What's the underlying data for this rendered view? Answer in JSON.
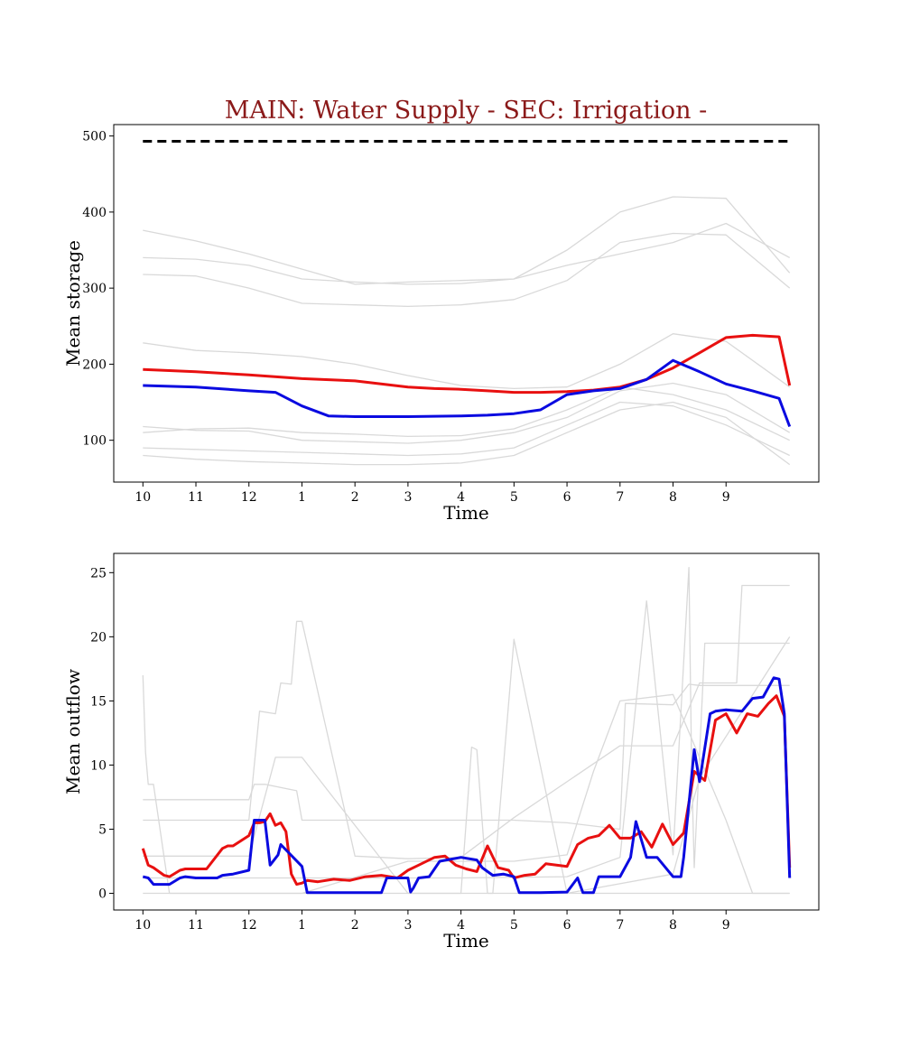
{
  "chart_data": [
    {
      "type": "line",
      "title": "MAIN: Water Supply - SEC: Irrigation -",
      "xlabel": "Time",
      "ylabel": "Mean storage",
      "x_tick_labels": [
        "10",
        "11",
        "12",
        "1",
        "2",
        "3",
        "4",
        "5",
        "6",
        "7",
        "8",
        "9"
      ],
      "x_tick_positions": [
        0,
        1,
        2,
        3,
        4,
        5,
        6,
        7,
        8,
        9,
        10,
        11
      ],
      "xlim": [
        -0.55,
        12.75
      ],
      "ylim": [
        45,
        515
      ],
      "y_ticks": [
        100,
        200,
        300,
        400,
        500
      ],
      "grid": false,
      "colors": {
        "highlight_red": "#e81010",
        "highlight_blue": "#0a0ae0",
        "background_lines": "#d9d9d9",
        "reference_line": "#000000"
      },
      "reference_line": {
        "y": 493,
        "x_range": [
          0,
          12.2
        ],
        "style": "dashed"
      },
      "series": [
        {
          "role": "red",
          "x": [
            0,
            1,
            2,
            3,
            4,
            5,
            5.5,
            6,
            6.5,
            7,
            7.5,
            8,
            8.5,
            9,
            9.5,
            10,
            10.5,
            11,
            11.5,
            12,
            12.2
          ],
          "values": [
            193,
            190,
            186,
            181,
            178,
            170,
            168,
            167,
            165,
            163,
            163,
            164,
            166,
            170,
            180,
            195,
            215,
            235,
            238,
            236,
            172
          ]
        },
        {
          "role": "blue",
          "x": [
            0,
            1,
            2,
            2.5,
            3,
            3.5,
            4,
            5,
            6,
            6.5,
            7,
            7.3,
            7.5,
            8,
            8.5,
            9,
            9.5,
            10,
            10.5,
            11,
            11.5,
            12,
            12.2
          ],
          "values": [
            172,
            170,
            165,
            163,
            145,
            132,
            131,
            131,
            132,
            133,
            135,
            138,
            140,
            160,
            165,
            168,
            180,
            205,
            190,
            174,
            165,
            155,
            118
          ]
        },
        {
          "role": "background",
          "x": [
            0,
            1,
            2,
            3,
            4,
            5,
            6,
            7,
            8,
            9,
            10,
            11,
            12.2
          ],
          "values": [
            376,
            362,
            345,
            325,
            305,
            308,
            310,
            312,
            330,
            345,
            360,
            385,
            340
          ]
        },
        {
          "role": "background",
          "x": [
            0,
            1,
            2,
            3,
            4,
            5,
            6,
            7,
            8,
            9,
            10,
            11,
            12.2
          ],
          "values": [
            340,
            338,
            330,
            312,
            308,
            305,
            306,
            312,
            350,
            400,
            420,
            418,
            320
          ]
        },
        {
          "role": "background",
          "x": [
            0,
            1,
            2,
            3,
            4,
            5,
            6,
            7,
            8,
            9,
            10,
            11,
            12.2
          ],
          "values": [
            318,
            316,
            300,
            280,
            278,
            276,
            278,
            285,
            310,
            360,
            372,
            370,
            300
          ]
        },
        {
          "role": "background",
          "x": [
            0,
            1,
            2,
            3,
            4,
            5,
            6,
            7,
            8,
            9,
            10,
            11,
            12.2
          ],
          "values": [
            228,
            218,
            215,
            210,
            200,
            185,
            172,
            168,
            170,
            200,
            240,
            230,
            170
          ]
        },
        {
          "role": "background",
          "x": [
            0,
            1,
            2,
            3,
            4,
            5,
            6,
            7,
            8,
            9,
            10,
            11,
            12.2
          ],
          "values": [
            118,
            113,
            112,
            100,
            98,
            96,
            100,
            110,
            130,
            165,
            175,
            160,
            110
          ]
        },
        {
          "role": "background",
          "x": [
            0,
            1,
            2,
            3,
            4,
            5,
            6,
            7,
            8,
            9,
            10,
            11,
            12.2
          ],
          "values": [
            110,
            115,
            116,
            110,
            108,
            105,
            106,
            115,
            140,
            170,
            160,
            140,
            100
          ]
        },
        {
          "role": "background",
          "x": [
            0,
            1,
            2,
            3,
            4,
            5,
            6,
            7,
            8,
            9,
            10,
            11,
            12.2
          ],
          "values": [
            90,
            88,
            86,
            84,
            82,
            80,
            82,
            90,
            120,
            150,
            145,
            120,
            80
          ]
        },
        {
          "role": "background",
          "x": [
            0,
            1,
            2,
            3,
            4,
            5,
            6,
            7,
            8,
            9,
            10,
            11,
            12.2
          ],
          "values": [
            80,
            75,
            72,
            70,
            68,
            68,
            70,
            80,
            110,
            140,
            150,
            130,
            68
          ]
        }
      ]
    },
    {
      "type": "line",
      "title": "",
      "xlabel": "Time",
      "ylabel": "Mean outflow",
      "x_tick_labels": [
        "10",
        "11",
        "12",
        "1",
        "2",
        "3",
        "4",
        "5",
        "6",
        "7",
        "8",
        "9"
      ],
      "x_tick_positions": [
        0,
        1,
        2,
        3,
        4,
        5,
        6,
        7,
        8,
        9,
        10,
        11
      ],
      "xlim": [
        -0.55,
        12.75
      ],
      "ylim": [
        -1.3,
        26.5
      ],
      "y_ticks": [
        0,
        5,
        10,
        15,
        20,
        25
      ],
      "grid": false,
      "colors": {
        "highlight_red": "#e81010",
        "highlight_blue": "#0a0ae0",
        "background_lines": "#d9d9d9"
      },
      "series": [
        {
          "role": "red",
          "x": [
            0,
            0.1,
            0.2,
            0.4,
            0.5,
            0.7,
            0.8,
            1.0,
            1.2,
            1.5,
            1.6,
            1.7,
            2.0,
            2.1,
            2.2,
            2.3,
            2.4,
            2.5,
            2.6,
            2.7,
            2.8,
            2.9,
            3.0,
            3.1,
            3.3,
            3.6,
            3.9,
            4.2,
            4.5,
            4.8,
            5.0,
            5.2,
            5.5,
            5.7,
            5.9,
            6.1,
            6.3,
            6.5,
            6.7,
            6.9,
            7.0,
            7.2,
            7.4,
            7.6,
            7.8,
            8.0,
            8.2,
            8.4,
            8.6,
            8.8,
            9.0,
            9.2,
            9.4,
            9.6,
            9.8,
            10.0,
            10.2,
            10.4,
            10.6,
            10.8,
            11.0,
            11.2,
            11.4,
            11.6,
            11.8,
            11.95,
            12.1,
            12.2
          ],
          "values": [
            3.5,
            2.2,
            2.0,
            1.4,
            1.3,
            1.8,
            1.9,
            1.9,
            1.9,
            3.5,
            3.7,
            3.7,
            4.5,
            5.5,
            5.5,
            5.6,
            6.2,
            5.3,
            5.5,
            4.8,
            1.5,
            0.7,
            0.8,
            1.0,
            0.9,
            1.1,
            1.0,
            1.3,
            1.4,
            1.2,
            1.8,
            2.2,
            2.8,
            2.9,
            2.2,
            1.9,
            1.7,
            3.7,
            2.0,
            1.8,
            1.2,
            1.4,
            1.5,
            2.3,
            2.2,
            2.1,
            3.8,
            4.3,
            4.5,
            5.3,
            4.3,
            4.3,
            4.8,
            3.6,
            5.4,
            3.8,
            4.7,
            9.5,
            8.8,
            13.5,
            14.0,
            12.5,
            14.0,
            13.8,
            14.8,
            15.4,
            13.8,
            2.0
          ]
        },
        {
          "role": "blue",
          "x": [
            0,
            0.1,
            0.2,
            0.5,
            0.7,
            0.8,
            1.0,
            1.4,
            1.5,
            1.7,
            2.0,
            2.1,
            2.3,
            2.4,
            2.55,
            2.6,
            3.0,
            3.1,
            3.5,
            4.0,
            4.5,
            4.6,
            5.0,
            5.05,
            5.1,
            5.2,
            5.4,
            5.6,
            6.0,
            6.3,
            6.4,
            6.6,
            6.8,
            7.0,
            7.1,
            7.3,
            7.5,
            8.0,
            8.2,
            8.3,
            8.5,
            8.6,
            9.0,
            9.2,
            9.3,
            9.5,
            9.7,
            10.0,
            10.15,
            10.2,
            10.4,
            10.5,
            10.7,
            10.8,
            11.0,
            11.3,
            11.5,
            11.7,
            11.9,
            12.0,
            12.1,
            12.2
          ],
          "values": [
            1.3,
            1.2,
            0.7,
            0.7,
            1.2,
            1.3,
            1.2,
            1.2,
            1.4,
            1.5,
            1.8,
            5.7,
            5.7,
            2.2,
            3.0,
            3.8,
            2.1,
            0.05,
            0.05,
            0.05,
            0.05,
            1.2,
            1.2,
            0.1,
            0.4,
            1.2,
            1.3,
            2.5,
            2.8,
            2.6,
            2.0,
            1.4,
            1.5,
            1.3,
            0.05,
            0.05,
            0.05,
            0.1,
            1.2,
            0.05,
            0.05,
            1.3,
            1.3,
            2.8,
            5.6,
            2.8,
            2.8,
            1.3,
            1.3,
            2.8,
            11.2,
            8.7,
            14.0,
            14.2,
            14.3,
            14.2,
            15.2,
            15.3,
            16.8,
            16.7,
            14.0,
            1.2
          ]
        },
        {
          "role": "background",
          "x": [
            0,
            0.05,
            0.1,
            0.2,
            0.4,
            0.5,
            1.0,
            12.2
          ],
          "values": [
            17,
            11,
            8.5,
            8.5,
            2.8,
            0,
            0,
            0
          ]
        },
        {
          "role": "background",
          "x": [
            0,
            1.0,
            2.0,
            2.1,
            2.3,
            2.9,
            3.0,
            5.0,
            7.0,
            8.0,
            9.0,
            9.1,
            10.0,
            10.3,
            10.5,
            12.2
          ],
          "values": [
            7.3,
            7.3,
            7.3,
            8.5,
            8.5,
            8.0,
            5.7,
            5.7,
            5.7,
            5.5,
            5.0,
            14.8,
            14.7,
            16.3,
            16.2,
            16.2
          ]
        },
        {
          "role": "background",
          "x": [
            0,
            1.0,
            2.0,
            2.2,
            2.5,
            2.6,
            2.8,
            2.9,
            3.0,
            4.0,
            5.0,
            6.0,
            7.0,
            9.0,
            10.0,
            10.5,
            11.2,
            11.3,
            12.2
          ],
          "values": [
            5.7,
            5.7,
            5.7,
            14.2,
            14.0,
            16.4,
            16.3,
            21.2,
            21.2,
            2.9,
            2.7,
            2.8,
            5.9,
            11.5,
            11.5,
            16.4,
            16.4,
            24.0,
            24.0
          ]
        },
        {
          "role": "background",
          "x": [
            0,
            1.0,
            2.0,
            2.5,
            3.0,
            5.0,
            6.0,
            6.2,
            6.3,
            6.5,
            6.6,
            7.0,
            8.0,
            10.0,
            10.5,
            12.2
          ],
          "values": [
            2.9,
            2.9,
            2.9,
            10.6,
            10.6,
            0,
            0,
            11.4,
            11.2,
            0,
            0,
            19.8,
            0,
            1.5,
            9.0,
            20.0
          ]
        },
        {
          "role": "background",
          "x": [
            0,
            2.0,
            4.0,
            6.0,
            8.0,
            9.0,
            9.5,
            10.0,
            10.3,
            10.35,
            10.4,
            10.6,
            12.2
          ],
          "values": [
            1.2,
            1.2,
            1.2,
            1.2,
            1.3,
            2.8,
            22.8,
            3.0,
            25.4,
            9.8,
            2.0,
            19.5,
            19.5
          ]
        },
        {
          "role": "background",
          "x": [
            0,
            3.0,
            5.0,
            7.0,
            8.0,
            8.5,
            9.0,
            10.0,
            11.0,
            11.5,
            12.0,
            12.2
          ],
          "values": [
            0,
            0,
            2.5,
            2.5,
            3.0,
            9.5,
            15.0,
            15.5,
            5.7,
            0,
            0,
            0
          ]
        }
      ]
    }
  ]
}
